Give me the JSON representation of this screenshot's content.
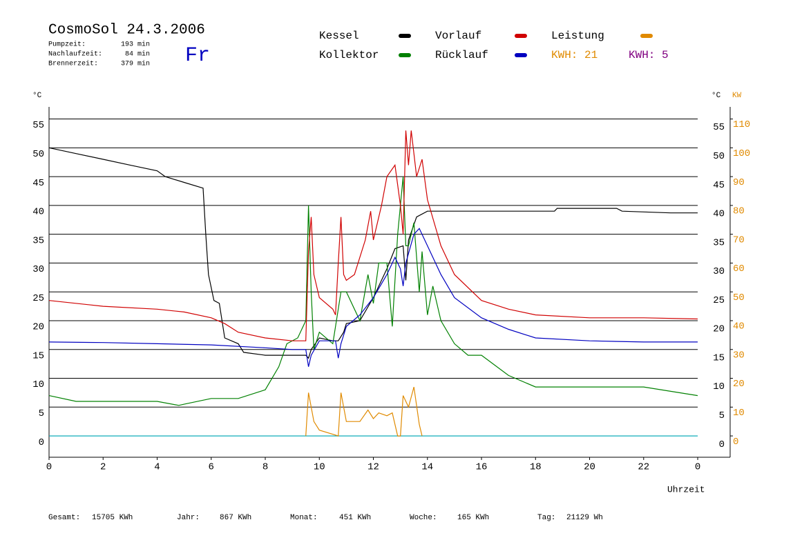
{
  "header": {
    "title": "CosmoSol 24.3.2006",
    "weekday": "Fr",
    "info": [
      {
        "label": "Pumpzeit:",
        "value": "193 min"
      },
      {
        "label": "Nachlaufzeit:",
        "value": "84 min"
      },
      {
        "label": "Brennerzeit:",
        "value": "379 min"
      }
    ]
  },
  "chart_data": {
    "type": "line",
    "x_label": "Uhrzeit",
    "y_unit": "°C",
    "y_unit_right": "°C",
    "y2_unit": "KW",
    "xlim": [
      0,
      25.2
    ],
    "xticks": [
      0,
      2,
      4,
      6,
      8,
      10,
      12,
      14,
      16,
      18,
      20,
      22,
      {
        "value": 24,
        "label": "0"
      }
    ],
    "ylim": [
      -3.7,
      57.1
    ],
    "yticks": [
      0,
      5,
      10,
      15,
      20,
      25,
      30,
      35,
      40,
      45,
      50,
      55
    ],
    "y2lim": [
      -7.4,
      114.2
    ],
    "y2ticks": [
      0,
      10,
      20,
      30,
      40,
      50,
      60,
      70,
      80,
      90,
      100,
      110
    ],
    "grid": true,
    "series": [
      {
        "name": "Kessel",
        "color": "#000000",
        "x": [
          0,
          1,
          2,
          3,
          4,
          4.3,
          5,
          5.7,
          5.8,
          5.9,
          6.1,
          6.3,
          6.5,
          7,
          7.2,
          8,
          9,
          9.5,
          9.6,
          9.7,
          10,
          10.5,
          10.7,
          10.9,
          11,
          11.5,
          12,
          12.5,
          12.8,
          13.1,
          13.2,
          13.3,
          13.6,
          14,
          16,
          18,
          18.7,
          18.8,
          20,
          21,
          21.2,
          23,
          24
        ],
        "values": [
          50,
          49,
          48,
          47,
          46,
          45,
          44,
          43,
          35,
          28,
          23.5,
          23,
          17,
          16,
          14.5,
          14,
          14,
          14,
          13.5,
          15,
          17,
          16.5,
          16.5,
          18,
          19.5,
          20,
          24,
          29,
          32.5,
          33,
          27,
          34,
          38,
          39,
          39,
          39,
          39,
          39.5,
          39.5,
          39.5,
          39,
          38.7,
          38.7
        ]
      },
      {
        "name": "Kollektor",
        "color": "#008000",
        "x": [
          0,
          1,
          2,
          3,
          4,
          4.8,
          5,
          6,
          7,
          8,
          8.5,
          8.8,
          9.2,
          9.5,
          9.6,
          9.7,
          9.8,
          10,
          10.5,
          10.8,
          11,
          11.5,
          11.8,
          12,
          12.2,
          12.5,
          12.7,
          12.9,
          13.1,
          13.2,
          13.3,
          13.5,
          13.7,
          13.8,
          14,
          14.2,
          14.5,
          15,
          15.5,
          16,
          17,
          18,
          20,
          22,
          24
        ],
        "values": [
          7,
          6,
          6,
          6,
          6,
          5.3,
          5.5,
          6.5,
          6.5,
          8,
          12,
          16,
          17,
          20,
          40,
          25,
          15,
          18,
          16,
          25,
          25,
          20,
          28,
          23,
          30,
          30,
          19,
          35,
          45,
          33,
          33,
          37,
          25,
          32,
          21,
          26,
          20,
          16,
          14,
          14,
          10.5,
          8.5,
          8.5,
          8.5,
          7
        ]
      },
      {
        "name": "Vorlauf",
        "color": "#d00000",
        "x": [
          0,
          2,
          4,
          5,
          6,
          6.5,
          7,
          8,
          9,
          9.5,
          9.6,
          9.7,
          9.8,
          10,
          10.5,
          10.6,
          10.7,
          10.8,
          10.9,
          11,
          11.3,
          11.7,
          11.9,
          12,
          12.3,
          12.5,
          12.8,
          13,
          13.1,
          13.2,
          13.3,
          13.4,
          13.6,
          13.8,
          14,
          14.5,
          15,
          16,
          17,
          18,
          20,
          22,
          24
        ],
        "values": [
          23.5,
          22.5,
          22,
          21.5,
          20.5,
          19.5,
          18,
          17,
          16.5,
          16.5,
          32,
          38,
          28,
          24,
          22,
          21,
          30,
          38,
          28,
          27,
          28,
          34,
          39,
          34,
          40,
          45,
          47,
          40,
          35,
          53,
          47,
          53,
          45,
          48,
          41,
          33,
          28,
          23.5,
          22,
          21,
          20.5,
          20.5,
          20.3
        ]
      },
      {
        "name": "Rücklauf",
        "color": "#0000c0",
        "x": [
          0,
          2,
          4,
          6,
          8,
          9,
          9.5,
          9.6,
          9.7,
          10,
          10.5,
          10.6,
          10.7,
          10.8,
          11,
          11.5,
          12,
          12.5,
          12.8,
          13,
          13.1,
          13.2,
          13.5,
          13.7,
          14,
          14.5,
          15,
          16,
          17,
          18,
          20,
          22,
          24
        ],
        "values": [
          16.3,
          16.2,
          16,
          15.8,
          15.3,
          15,
          15,
          12,
          14,
          16.5,
          16.5,
          16.5,
          13.5,
          16,
          19,
          21,
          24,
          28,
          31,
          29,
          26,
          30,
          35,
          36,
          33,
          28,
          24,
          20.5,
          18.5,
          17,
          16.5,
          16.3,
          16.3
        ]
      },
      {
        "name": "Leistung",
        "color": "#e08a00",
        "axis": "y2",
        "x": [
          9.5,
          9.6,
          9.8,
          10,
          10.7,
          10.8,
          11,
          11.5,
          11.8,
          12,
          12.2,
          12.5,
          12.7,
          12.9,
          13,
          13.1,
          13.3,
          13.5,
          13.7,
          13.8
        ],
        "values": [
          0,
          15,
          5,
          2,
          0,
          15,
          5,
          5,
          9,
          6,
          8,
          7,
          8,
          0,
          0,
          14,
          10,
          17,
          4,
          0
        ]
      }
    ],
    "energy_labels": [
      {
        "text": "KWH: 21",
        "color": "#e08a00"
      },
      {
        "text": "KWH: 5",
        "color": "#800080"
      }
    ]
  },
  "stats": [
    {
      "label": "Gesamt:",
      "value": "15705 KWh"
    },
    {
      "label": "Jahr:",
      "value": "867 KWh"
    },
    {
      "label": "Monat:",
      "value": "451 KWh"
    },
    {
      "label": "Woche:",
      "value": "165 KWh"
    },
    {
      "label": "Tag:",
      "value": "21129 Wh"
    }
  ]
}
